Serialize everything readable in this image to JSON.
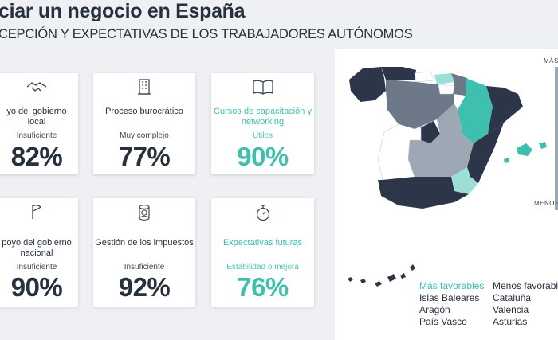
{
  "header": {
    "title": "ciar un negocio en España",
    "subtitle": "CEPCIÓN Y EXPECTATIVAS DE LOS TRABAJADORES AUTÓNOMOS"
  },
  "cards": [
    {
      "title": "yo del gobierno local",
      "status": "Insuficiente",
      "value": "82%",
      "icon": "handshake-icon"
    },
    {
      "title": "Proceso burocrático",
      "status": "Muy complejo",
      "value": "77%",
      "icon": "building-icon"
    },
    {
      "title": "Cursos de capacitación y networking",
      "status": "Útiles",
      "value": "90%",
      "icon": "book-icon"
    },
    {
      "title": "poyo del gobierno nacional",
      "status": "Insuficiente",
      "value": "90%",
      "icon": "flag-icon"
    },
    {
      "title": "Gestión de los impuestos",
      "status": "Insuficiente",
      "value": "92%",
      "icon": "coins-icon"
    },
    {
      "title": "Expectativas futuras",
      "status": "Estabilidad o mejora",
      "value": "76%",
      "icon": "stopwatch-icon"
    }
  ],
  "map": {
    "scale_high": "MÁS",
    "scale_low": "MENOS"
  },
  "legend": {
    "favorable_title": "Más favorables",
    "favorable_items": [
      "Islas Baleares",
      "Aragón",
      "País Vasco"
    ],
    "unfavorable_title": "Menos favorabl",
    "unfavorable_items": [
      "Cataluña",
      "Valencia",
      "Asturias"
    ]
  },
  "colors": {
    "dark": "#2c3648",
    "mid": "#6d7889",
    "light": "#9ea7b4",
    "teal": "#3fbfae",
    "teal_light": "#9bdfd6",
    "white": "#ffffff"
  }
}
